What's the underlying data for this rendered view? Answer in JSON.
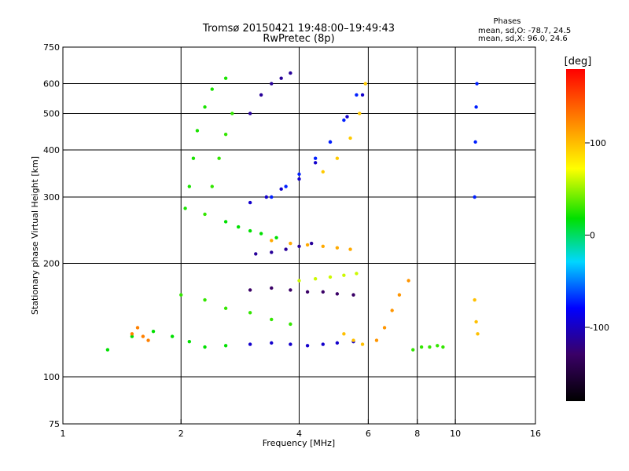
{
  "chart_data": {
    "type": "scatter",
    "title": "Tromsø 20150421 19:48:00–19:49:43",
    "subtitle": "RwPretec (8p)",
    "xlabel": "Frequency [MHz]",
    "ylabel": "Stationary phase Virtual Height [km]",
    "x_scale": "log",
    "y_scale": "log",
    "xlim": [
      1,
      16
    ],
    "ylim": [
      75,
      750
    ],
    "x_ticks": [
      1,
      2,
      4,
      8,
      16
    ],
    "x_tick_labels": [
      "1",
      "2",
      "4",
      "6",
      "8",
      "10",
      "16"
    ],
    "x_tick_label_values": [
      1,
      2,
      4,
      6,
      8,
      10,
      16
    ],
    "x_gridlines": [
      2,
      4,
      6,
      8,
      10
    ],
    "y_ticks": [
      75,
      100,
      200,
      300,
      400,
      500,
      600,
      750
    ],
    "y_tick_labels": [
      "75",
      "100",
      "200",
      "300",
      "400",
      "500",
      "600",
      "750"
    ],
    "y_gridlines": [
      100,
      200,
      300,
      400,
      500,
      600
    ],
    "grid": true,
    "stats": {
      "heading": "Phases",
      "line1": "mean, sd,O: -78.7, 24.5",
      "line2": "mean, sd,X:  96.0, 24.6"
    },
    "colorbar": {
      "label": "[deg]",
      "range": [
        -180,
        180
      ],
      "ticks": [
        100,
        0,
        -100
      ],
      "tick_labels": [
        "100",
        "0",
        "-100"
      ],
      "colormap": "rainbow"
    },
    "traces": [
      {
        "x": [
          1.3,
          1.5,
          1.7,
          1.9,
          2.1,
          2.3,
          2.6
        ],
        "y": [
          118,
          128,
          132,
          128,
          124,
          120,
          121
        ],
        "phase": 20
      },
      {
        "x": [
          1.5,
          1.55,
          1.6,
          1.65
        ],
        "y": [
          130,
          135,
          128,
          125
        ],
        "phase": 130
      },
      {
        "x": [
          2.05,
          2.1,
          2.15,
          2.2,
          2.3,
          2.4,
          2.6
        ],
        "y": [
          280,
          320,
          380,
          450,
          520,
          580,
          620
        ],
        "phase": 25
      },
      {
        "x": [
          2.3,
          2.4,
          2.5,
          2.6,
          2.7
        ],
        "y": [
          270,
          320,
          380,
          440,
          500
        ],
        "phase": 30
      },
      {
        "x": [
          2.6,
          2.8,
          3.0,
          3.2,
          3.5
        ],
        "y": [
          258,
          250,
          244,
          240,
          234
        ],
        "phase": 20
      },
      {
        "x": [
          2.0,
          2.3,
          2.6,
          3.0,
          3.4,
          3.8
        ],
        "y": [
          165,
          160,
          152,
          148,
          142,
          138
        ],
        "phase": 30
      },
      {
        "x": [
          3.0,
          3.3,
          3.6,
          4.0,
          4.4,
          4.8,
          5.3,
          5.8
        ],
        "y": [
          290,
          300,
          315,
          335,
          370,
          420,
          490,
          560
        ],
        "phase": -110
      },
      {
        "x": [
          3.4,
          3.7,
          4.0,
          4.4,
          4.8,
          5.2,
          5.6
        ],
        "y": [
          300,
          320,
          345,
          380,
          420,
          480,
          560
        ],
        "phase": -90
      },
      {
        "x": [
          4.6,
          5.0,
          5.4,
          5.7,
          5.9
        ],
        "y": [
          350,
          380,
          430,
          500,
          600
        ],
        "phase": 95
      },
      {
        "x": [
          3.0,
          3.2,
          3.4,
          3.6,
          3.8
        ],
        "y": [
          500,
          560,
          600,
          620,
          640
        ],
        "phase": -120
      },
      {
        "x": [
          3.0,
          3.4,
          3.8,
          4.2,
          4.6,
          5.0,
          5.5
        ],
        "y": [
          170,
          172,
          170,
          168,
          168,
          166,
          165
        ],
        "phase": -130
      },
      {
        "x": [
          3.0,
          3.4,
          3.8,
          4.2,
          4.6,
          5.0,
          5.5
        ],
        "y": [
          122,
          123,
          122,
          121,
          122,
          123,
          124
        ],
        "phase": -110
      },
      {
        "x": [
          3.1,
          3.4,
          3.7,
          4.0,
          4.3
        ],
        "y": [
          212,
          214,
          218,
          222,
          226
        ],
        "phase": -120
      },
      {
        "x": [
          4.0,
          4.4,
          4.8,
          5.2,
          5.6
        ],
        "y": [
          180,
          182,
          184,
          186,
          188
        ],
        "phase": 60
      },
      {
        "x": [
          3.4,
          3.8,
          4.2,
          4.6,
          5.0,
          5.4
        ],
        "y": [
          230,
          226,
          224,
          222,
          220,
          218
        ],
        "phase": 110
      },
      {
        "x": [
          5.2,
          5.5,
          5.8
        ],
        "y": [
          130,
          125,
          122
        ],
        "phase": 100
      },
      {
        "x": [
          6.3,
          6.6,
          6.9,
          7.2,
          7.6
        ],
        "y": [
          125,
          135,
          150,
          165,
          180
        ],
        "phase": 120
      },
      {
        "x": [
          7.8,
          8.2,
          8.6,
          9.0,
          9.3
        ],
        "y": [
          118,
          120,
          120,
          121,
          120
        ],
        "phase": 30
      },
      {
        "x": [
          11.2,
          11.25,
          11.3,
          11.35
        ],
        "y": [
          300,
          420,
          520,
          600
        ],
        "phase": -90
      },
      {
        "x": [
          11.2,
          11.3,
          11.4
        ],
        "y": [
          160,
          140,
          130
        ],
        "phase": 100
      }
    ]
  }
}
